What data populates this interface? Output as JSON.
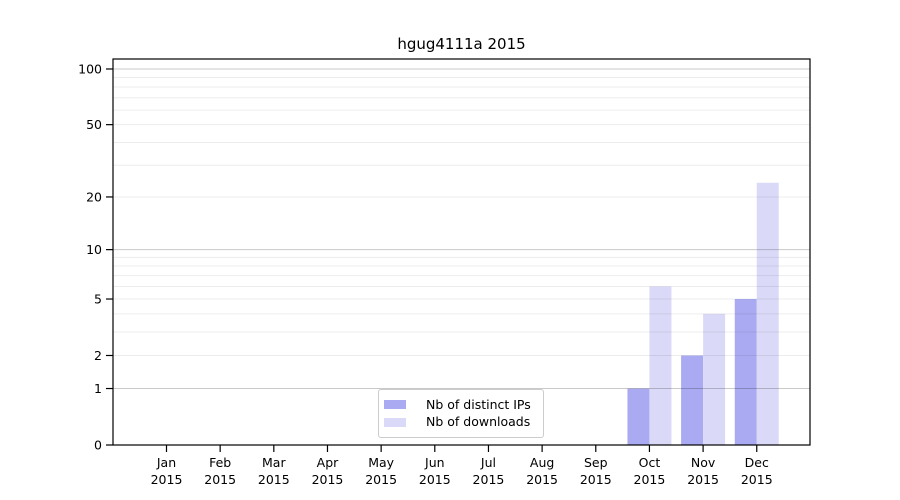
{
  "title": "hgug4111a 2015",
  "chart_data": {
    "type": "bar",
    "title": "hgug4111a 2015",
    "categories": [
      "Jan",
      "Feb",
      "Mar",
      "Apr",
      "May",
      "Jun",
      "Jul",
      "Aug",
      "Sep",
      "Oct",
      "Nov",
      "Dec"
    ],
    "category_year": "2015",
    "series": [
      {
        "name": "Nb of distinct IPs",
        "color": "#aaaaf2",
        "values": [
          0,
          0,
          0,
          0,
          0,
          0,
          0,
          0,
          0,
          1,
          2,
          5
        ]
      },
      {
        "name": "Nb of downloads",
        "color": "#dadaf8",
        "values": [
          0,
          0,
          0,
          0,
          0,
          0,
          0,
          0,
          0,
          6,
          4,
          24
        ]
      }
    ],
    "xlabel": "",
    "ylabel": "",
    "y_scale": "log10(1+v)",
    "y_ticks": [
      100,
      50,
      20,
      10,
      5,
      2,
      1,
      0
    ],
    "ylim": [
      0,
      113
    ],
    "grid": {
      "minor_values": [
        2,
        3,
        4,
        5,
        6,
        7,
        8,
        9,
        20,
        30,
        40,
        50,
        60,
        70,
        80,
        90
      ],
      "major_values": [
        1,
        10,
        100
      ],
      "minor_color": "rgba(0,0,0,0.075)",
      "major_color": "rgba(0,0,0,0.21)"
    },
    "grid_on": true,
    "grid_above_bars": true,
    "legend_position": "inside lower center",
    "frame_color": "#000000",
    "background_color": "#ffffff"
  }
}
